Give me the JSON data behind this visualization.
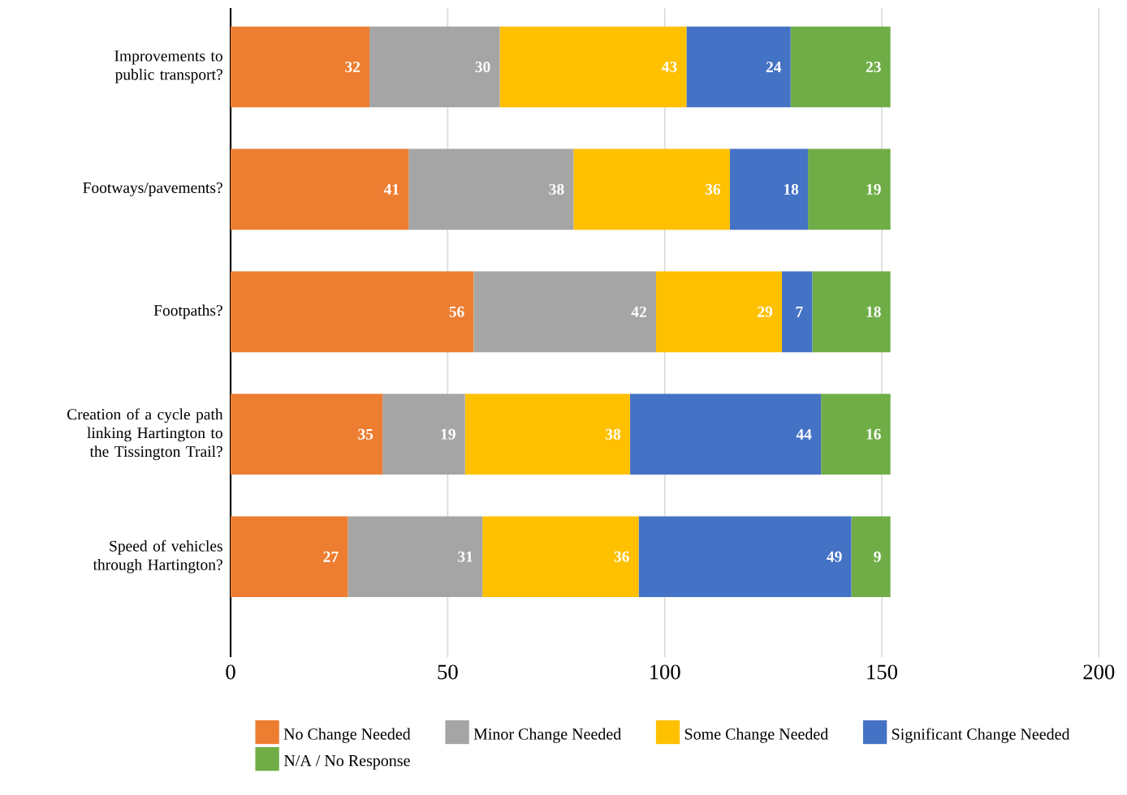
{
  "chart_data": {
    "type": "bar",
    "orientation": "horizontal",
    "stacked": true,
    "categories": [
      "Improvements to public transport?",
      "Footways/pavements?",
      "Footpaths?",
      "Creation of a cycle path linking Hartington to the Tissington Trail?",
      "Speed of vehicles through Hartington?"
    ],
    "series": [
      {
        "name": "No Change Needed",
        "color": "#ed7d31",
        "values": [
          32,
          41,
          56,
          35,
          27
        ]
      },
      {
        "name": "Minor Change Needed",
        "color": "#a5a5a5",
        "values": [
          30,
          38,
          42,
          19,
          31
        ]
      },
      {
        "name": "Some Change Needed",
        "color": "#ffc000",
        "values": [
          43,
          36,
          29,
          38,
          36
        ]
      },
      {
        "name": "Significant Change Needed",
        "color": "#4472c4",
        "values": [
          24,
          18,
          7,
          44,
          49
        ]
      },
      {
        "name": "N/A / No Response",
        "color": "#70ad47",
        "values": [
          23,
          19,
          18,
          16,
          9
        ]
      }
    ],
    "xlim": [
      0,
      200
    ],
    "xticks": [
      0,
      50,
      100,
      150,
      200
    ],
    "grid": "x",
    "legend": "bottom",
    "data_labels": true
  }
}
